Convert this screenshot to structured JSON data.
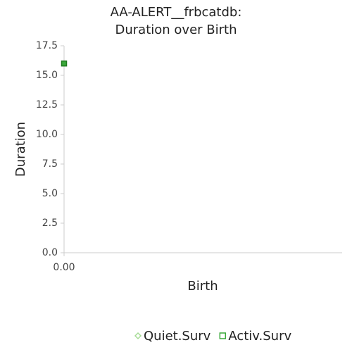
{
  "chart_data": {
    "type": "scatter",
    "title": [
      "AA-ALERT__frbcatdb:",
      "Duration over Birth"
    ],
    "x_label": "Birth",
    "y_label": "Duration",
    "xlim": [
      0,
      1
    ],
    "xticks": [
      {
        "value": 0,
        "label": "0.00"
      }
    ],
    "ylim": [
      0,
      17.5
    ],
    "yticks": [
      {
        "value": 0,
        "label": "0.0"
      },
      2.5,
      {
        "value": 5,
        "label": "5.0"
      },
      7.5,
      {
        "value": 10,
        "label": "10.0"
      },
      12.5,
      {
        "value": 15,
        "label": "15.0"
      },
      17.5
    ],
    "grid": false,
    "legend": "bottom",
    "series": [
      {
        "name": "Quiet.Surv",
        "color": "#a6dc96",
        "marker": "diamond",
        "x": [],
        "values": []
      },
      {
        "name": "Activ.Surv",
        "color": "#3aa83a",
        "marker": "square",
        "x": [
          0
        ],
        "values": [
          16
        ]
      }
    ]
  }
}
